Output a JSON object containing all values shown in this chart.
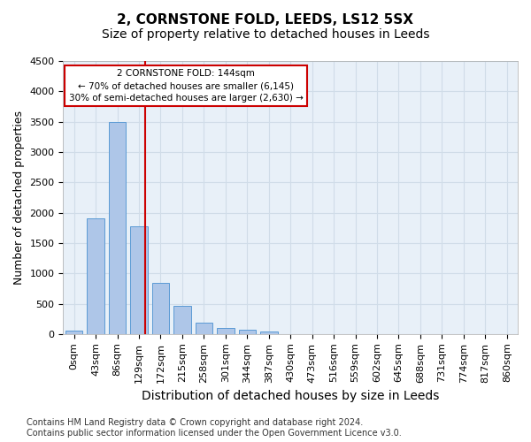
{
  "title": "2, CORNSTONE FOLD, LEEDS, LS12 5SX",
  "subtitle": "Size of property relative to detached houses in Leeds",
  "xlabel": "Distribution of detached houses by size in Leeds",
  "ylabel": "Number of detached properties",
  "bar_values": [
    50,
    1900,
    3500,
    1775,
    840,
    460,
    185,
    100,
    75,
    45,
    0,
    0,
    0,
    0,
    0,
    0,
    0,
    0,
    0,
    0,
    0
  ],
  "bar_labels": [
    "0sqm",
    "43sqm",
    "86sqm",
    "129sqm",
    "172sqm",
    "215sqm",
    "258sqm",
    "301sqm",
    "344sqm",
    "387sqm",
    "430sqm",
    "473sqm",
    "516sqm",
    "559sqm",
    "602sqm",
    "645sqm",
    "688sqm",
    "731sqm",
    "774sqm",
    "817sqm",
    "860sqm"
  ],
  "bar_color": "#aec6e8",
  "bar_edge_color": "#5b9bd5",
  "bar_width": 0.8,
  "ylim": [
    0,
    4500
  ],
  "yticks": [
    0,
    500,
    1000,
    1500,
    2000,
    2500,
    3000,
    3500,
    4000,
    4500
  ],
  "vline_x": 3.3,
  "vline_color": "#cc0000",
  "annotation_text": "2 CORNSTONE FOLD: 144sqm\n← 70% of detached houses are smaller (6,145)\n30% of semi-detached houses are larger (2,630) →",
  "annotation_box_color": "#ffffff",
  "annotation_box_edge": "#cc0000",
  "grid_color": "#d0dce8",
  "background_color": "#e8f0f8",
  "footnote": "Contains HM Land Registry data © Crown copyright and database right 2024.\nContains public sector information licensed under the Open Government Licence v3.0.",
  "title_fontsize": 11,
  "subtitle_fontsize": 10,
  "xlabel_fontsize": 10,
  "ylabel_fontsize": 9,
  "tick_fontsize": 8,
  "footnote_fontsize": 7
}
